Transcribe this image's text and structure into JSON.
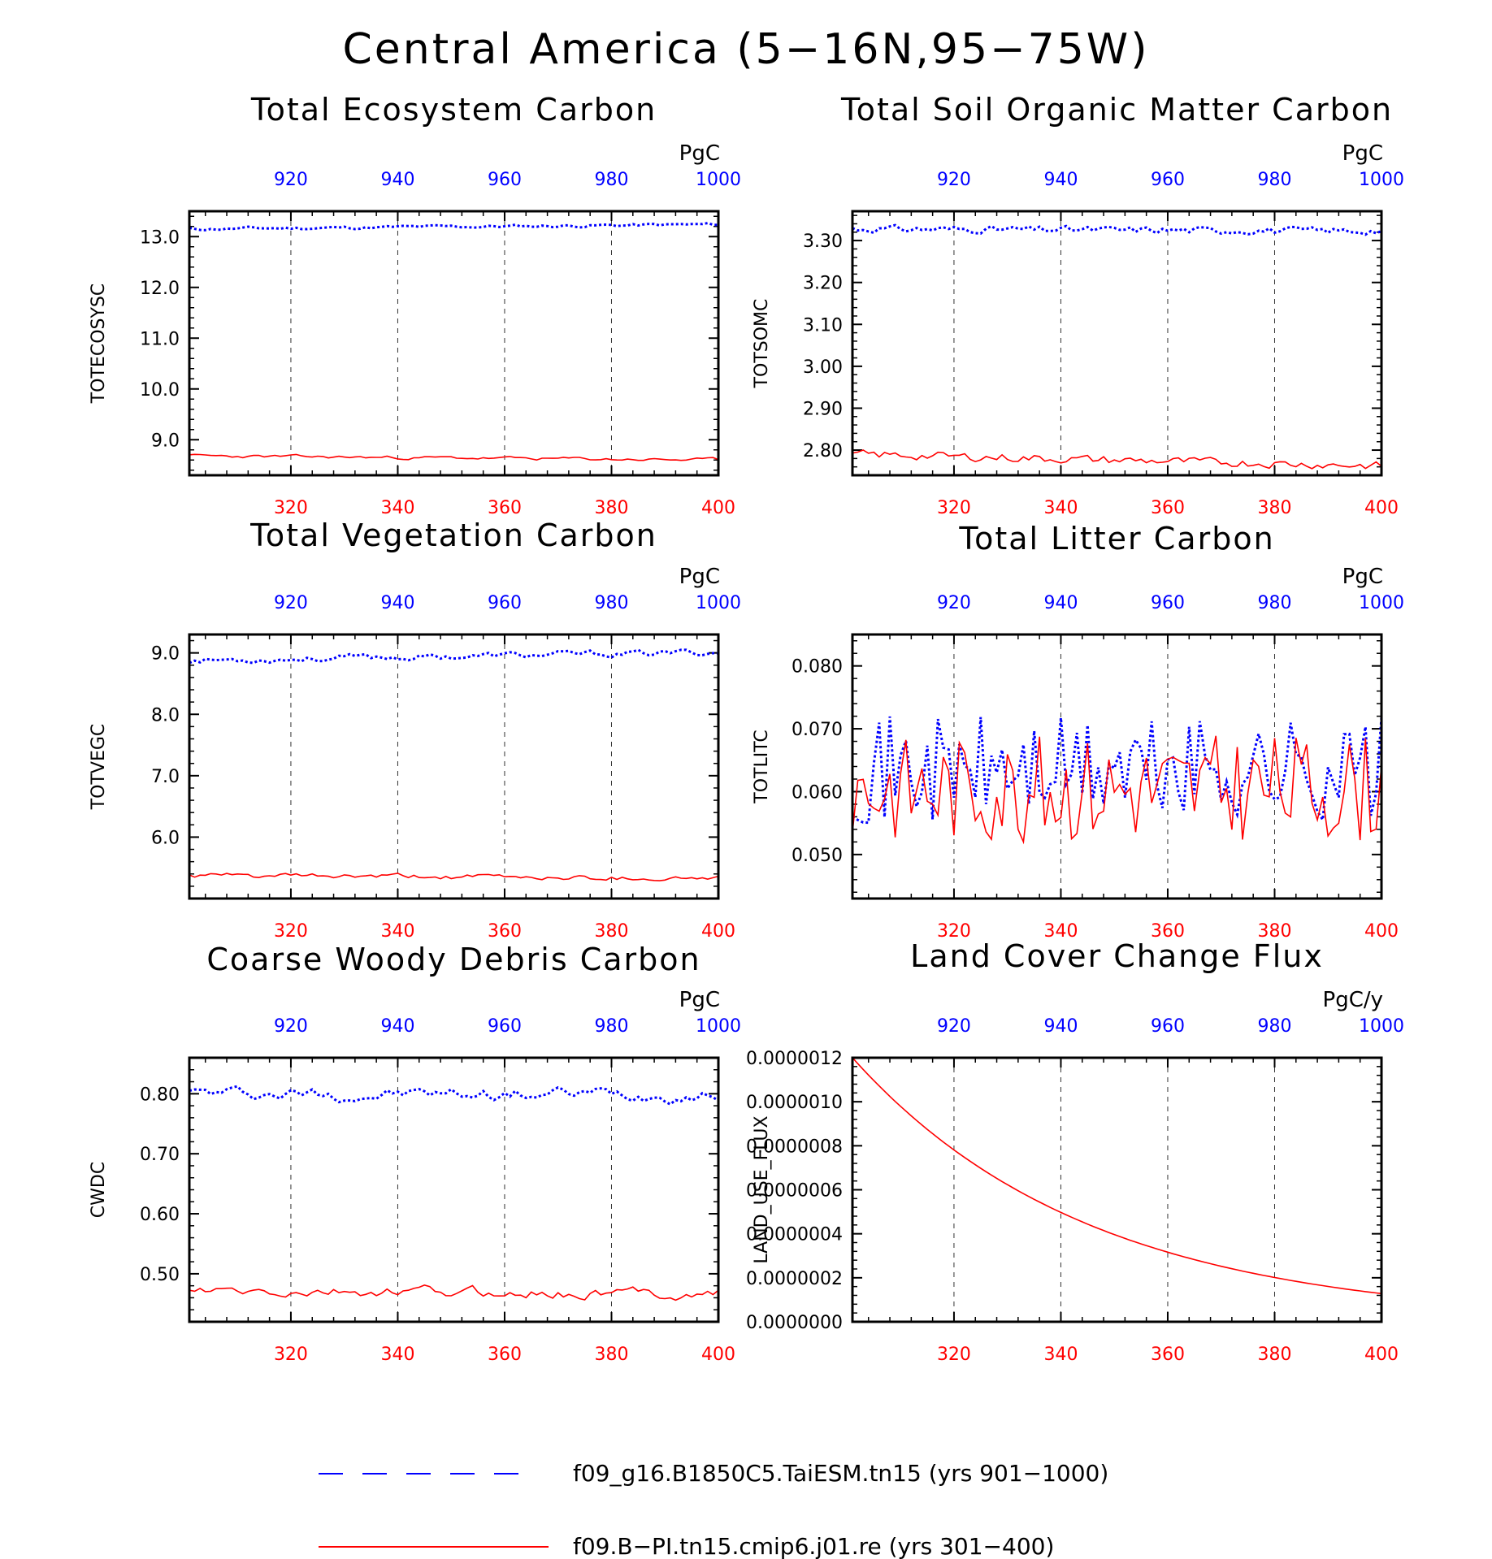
{
  "figure": {
    "title": "Central America (5−16N,95−75W)"
  },
  "legend": [
    {
      "label": "f09_g16.B1850C5.TaiESM.tn15 (yrs 901−1000)",
      "color": "#0000ff",
      "style": "dashed"
    },
    {
      "label": "f09.B−PI.tn15.cmip6.j01.re (yrs 301−400)",
      "color": "#ff0000",
      "style": "solid"
    }
  ],
  "chart_data": [
    {
      "type": "line",
      "title": "Total Ecosystem Carbon",
      "ylabel": "TOTECOSYSC",
      "unit": "PgC",
      "ylim": [
        8.3,
        13.5
      ],
      "yticks": [
        "9.0",
        "10.0",
        "11.0",
        "12.0",
        "13.0"
      ],
      "x_bottom": {
        "lim": [
          301,
          400
        ],
        "ticks": [
          "320",
          "340",
          "360",
          "380",
          "400"
        ]
      },
      "x_top": {
        "lim": [
          901,
          1000
        ],
        "ticks": [
          "920",
          "940",
          "960",
          "980",
          "1000"
        ]
      },
      "series": [
        {
          "color": "#0000ff",
          "style": "dotted",
          "axis": "top",
          "base": 13.15,
          "amp": 0.03,
          "trend": 0.0009,
          "seed": 11,
          "smooth": 0.6
        },
        {
          "color": "#ff0000",
          "style": "solid",
          "axis": "bottom",
          "base": 8.68,
          "amp": 0.03,
          "trend": -0.0008,
          "seed": 23,
          "smooth": 0.6
        }
      ]
    },
    {
      "type": "line",
      "title": "Total Soil Organic Matter Carbon",
      "ylabel": "TOTSOMC",
      "unit": "PgC",
      "ylim": [
        2.74,
        3.37
      ],
      "yticks": [
        "2.80",
        "2.90",
        "3.00",
        "3.10",
        "3.20",
        "3.30"
      ],
      "x_bottom": {
        "lim": [
          301,
          400
        ],
        "ticks": [
          "320",
          "340",
          "360",
          "380",
          "400"
        ]
      },
      "x_top": {
        "lim": [
          901,
          1000
        ],
        "ticks": [
          "920",
          "940",
          "960",
          "980",
          "1000"
        ]
      },
      "series": [
        {
          "color": "#0000ff",
          "style": "dotted",
          "axis": "top",
          "base": 3.328,
          "amp": 0.005,
          "trend": -5e-05,
          "seed": 31,
          "smooth": 0.3
        },
        {
          "color": "#ff0000",
          "style": "solid",
          "axis": "bottom",
          "base": 2.79,
          "amp": 0.006,
          "trend": -0.00028,
          "seed": 43,
          "smooth": 0.3
        }
      ]
    },
    {
      "type": "line",
      "title": "Total Vegetation Carbon",
      "ylabel": "TOTVEGC",
      "unit": "PgC",
      "ylim": [
        5.0,
        9.3
      ],
      "yticks": [
        "6.0",
        "7.0",
        "8.0",
        "9.0"
      ],
      "x_bottom": {
        "lim": [
          301,
          400
        ],
        "ticks": [
          "320",
          "340",
          "360",
          "380",
          "400"
        ]
      },
      "x_top": {
        "lim": [
          901,
          1000
        ],
        "ticks": [
          "920",
          "940",
          "960",
          "980",
          "1000"
        ]
      },
      "series": [
        {
          "color": "#0000ff",
          "style": "dotted",
          "axis": "top",
          "base": 8.88,
          "amp": 0.05,
          "trend": 0.0013,
          "seed": 53,
          "smooth": 0.6
        },
        {
          "color": "#ff0000",
          "style": "solid",
          "axis": "bottom",
          "base": 5.37,
          "amp": 0.04,
          "trend": -0.0004,
          "seed": 61,
          "smooth": 0.6
        }
      ]
    },
    {
      "type": "line",
      "title": "Total Litter Carbon",
      "ylabel": "TOTLITC",
      "unit": "PgC",
      "ylim": [
        0.043,
        0.085
      ],
      "yticks": [
        "0.050",
        "0.060",
        "0.070",
        "0.080"
      ],
      "x_bottom": {
        "lim": [
          301,
          400
        ],
        "ticks": [
          "320",
          "340",
          "360",
          "380",
          "400"
        ]
      },
      "x_top": {
        "lim": [
          901,
          1000
        ],
        "ticks": [
          "920",
          "940",
          "960",
          "980",
          "1000"
        ]
      },
      "series": [
        {
          "color": "#0000ff",
          "style": "dotted",
          "axis": "top",
          "base": 0.0635,
          "amp": 0.0085,
          "trend": 0,
          "seed": 71,
          "smooth": 0.0
        },
        {
          "color": "#ff0000",
          "style": "solid",
          "axis": "bottom",
          "base": 0.0605,
          "amp": 0.0085,
          "trend": 0,
          "seed": 83,
          "smooth": 0.0
        }
      ]
    },
    {
      "type": "line",
      "title": "Coarse Woody Debris Carbon",
      "ylabel": "CWDC",
      "unit": "PgC",
      "ylim": [
        0.42,
        0.86
      ],
      "yticks": [
        "0.50",
        "0.60",
        "0.70",
        "0.80"
      ],
      "x_bottom": {
        "lim": [
          301,
          400
        ],
        "ticks": [
          "320",
          "340",
          "360",
          "380",
          "400"
        ]
      },
      "x_top": {
        "lim": [
          901,
          1000
        ],
        "ticks": [
          "920",
          "940",
          "960",
          "980",
          "1000"
        ]
      },
      "series": [
        {
          "color": "#0000ff",
          "style": "dotted",
          "axis": "top",
          "base": 0.8,
          "amp": 0.013,
          "trend": 0,
          "seed": 97,
          "smooth": 0.7
        },
        {
          "color": "#ff0000",
          "style": "solid",
          "axis": "bottom",
          "base": 0.468,
          "amp": 0.011,
          "trend": 0,
          "seed": 103,
          "smooth": 0.7
        }
      ]
    },
    {
      "type": "line",
      "title": "Land Cover Change Flux",
      "ylabel": "LAND_USE_FLUX",
      "unit": "PgC/y",
      "ylim": [
        0,
        1.2e-06
      ],
      "yticks": [
        "0.0000000",
        "0.0000002",
        "0.0000004",
        "0.0000006",
        "0.0000008",
        "0.0000010",
        "0.0000012"
      ],
      "x_bottom": {
        "lim": [
          301,
          400
        ],
        "ticks": [
          "320",
          "340",
          "360",
          "380",
          "400"
        ]
      },
      "x_top": {
        "lim": [
          901,
          1000
        ],
        "ticks": [
          "920",
          "940",
          "960",
          "980",
          "1000"
        ]
      },
      "series": [
        {
          "color": "#ff0000",
          "style": "solid",
          "axis": "bottom",
          "decay": {
            "y0": 1.2e-06,
            "rate": 0.0226
          }
        }
      ]
    }
  ]
}
